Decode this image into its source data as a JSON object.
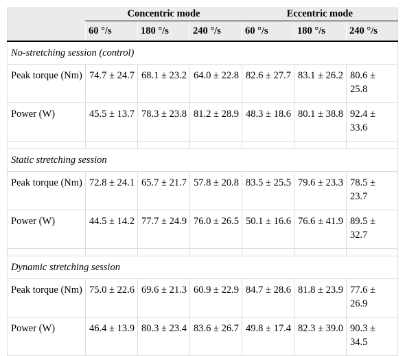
{
  "header": {
    "groups": [
      "Concentric mode",
      "Eccentric mode"
    ],
    "speeds": [
      "60 °/s",
      "180 °/s",
      "240 °/s",
      "60 °/s",
      "180 °/s",
      "240 °/s"
    ]
  },
  "sections": [
    {
      "title": "No-stretching session (control)",
      "rows": [
        {
          "label": " Peak torque (Nm)",
          "values": [
            "74.7 ± 24.7",
            "68.1 ± 23.2",
            "64.0 ± 22.8",
            "82.6 ± 27.7",
            "83.1 ± 26.2",
            "80.6 ± 25.8"
          ]
        },
        {
          "label": " Power (W)",
          "values": [
            "45.5 ± 13.7",
            "78.3 ± 23.8",
            "81.2 ± 28.9",
            "48.3 ± 18.6",
            "80.1 ± 38.8",
            "92.4 ± 33.6"
          ]
        }
      ]
    },
    {
      "title": "Static stretching session",
      "rows": [
        {
          "label": " Peak torque (Nm)",
          "values": [
            "72.8 ± 24.1",
            "65.7 ± 21.7",
            "57.8 ± 20.8",
            "83.5 ± 25.5",
            "79.6 ± 23.3",
            "78.5 ± 23.7"
          ]
        },
        {
          "label": " Power (W)",
          "values": [
            "44.5 ± 14.2",
            "77.7 ± 24.9",
            "76.0 ± 26.5",
            "50.1 ± 16.6",
            "76.6 ± 41.9",
            "89.5 ± 32.7"
          ]
        }
      ]
    },
    {
      "title": "Dynamic stretching session",
      "rows": [
        {
          "label": " Peak torque (Nm)",
          "values": [
            "75.0 ± 22.6",
            "69.6 ± 21.3",
            "60.9 ± 22.9",
            "84.7 ± 28.6",
            "81.8 ± 23.9",
            "77.6 ± 26.9"
          ]
        },
        {
          "label": " Power (W)",
          "values": [
            "46.4 ± 13.9",
            "80.3 ± 23.4",
            "83.6 ± 26.7",
            "49.8 ± 17.4",
            "82.3 ± 39.0",
            "90.3 ± 34.5"
          ]
        }
      ]
    }
  ]
}
